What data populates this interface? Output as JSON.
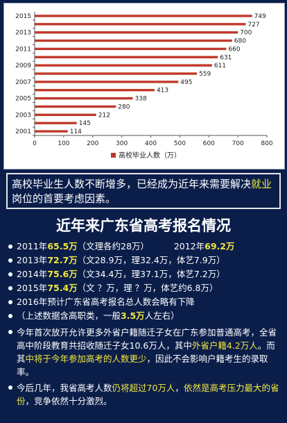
{
  "chart_data": {
    "type": "bar",
    "orientation": "horizontal",
    "categories": [
      "2001",
      "2002",
      "2003",
      "2004",
      "2005",
      "2006",
      "2007",
      "2008",
      "2009",
      "2010",
      "2011",
      "2012",
      "2013",
      "2014",
      "2015"
    ],
    "values": [
      114,
      145,
      212,
      280,
      338,
      413,
      495,
      559,
      611,
      631,
      660,
      680,
      700,
      727,
      749
    ],
    "y_tick_labels": [
      "2001",
      "2003",
      "2005",
      "2007",
      "2009",
      "2011",
      "2013",
      "2015"
    ],
    "x_ticks": [
      0,
      100,
      200,
      300,
      400,
      500,
      600,
      700,
      800
    ],
    "xlim": [
      0,
      800
    ],
    "legend": "高校毕业人数（万）",
    "legend_position": "bottom",
    "bar_color": "#c0392b",
    "grid": false
  },
  "caption": {
    "part1": "高校毕业生人数不断增多，已经成为近年来需要解决",
    "highlight": "就业",
    "part2": "岗位的首要考虑因素。"
  },
  "registration": {
    "title": "近年来广东省高考报名情况",
    "y2011a_pre": "2011年",
    "y2011a_num": "65.5万",
    "y2011a_note": "（文理各约28万）",
    "y2012_pre": "2012年",
    "y2012_num": "69.2万",
    "y2013_pre": "2013年",
    "y2013_num": "72.7万",
    "y2013_note": "（文28.9万，理32.4万，体艺7.9万）",
    "y2014_pre": "2014年",
    "y2014_num": "75.6万",
    "y2014_note": "（文34.4万，理37.1万，体艺7.2万）",
    "y2015_pre": "2015年",
    "y2015_num": "75.4万",
    "y2015_note": "（文 ？万，理 ？万，体艺约6.8万）",
    "forecast": "2016年预计广东省高考报名总人数会略有下降",
    "note_pre": "（上述数据含高职类，一般",
    "note_num": "3.5万",
    "note_post": "人左右）",
    "para1_a": "今年首次放开允许更多外省户籍随迁子女在广东参加普通高考，全省高中阶段教育共招收随迁子女10.6万人，其中",
    "para1_h1": "外省户籍4.2万人",
    "para1_b": "。而其",
    "para1_h2": "中将于今年参加高考的人数更少",
    "para1_c": "，因此不会影响户籍考生的录取率。",
    "para2_a": "今后几年，我省高考人数",
    "para2_h1": "仍将超过70万人",
    "para2_b": "，",
    "para2_h2": "依然是高考压力最大的省份",
    "para2_c": "，竞争依然十分激烈。"
  }
}
